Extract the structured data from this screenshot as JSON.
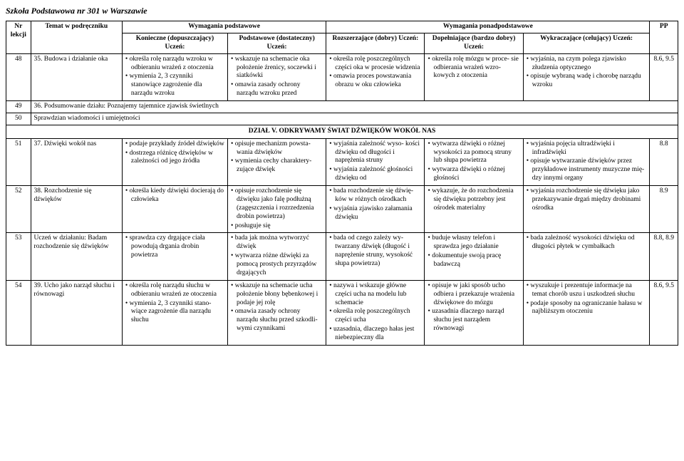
{
  "school": "Szkoła Podstawowa nr 301 w Warszawie",
  "header": {
    "wym_podst": "Wymagania podstawowe",
    "wym_ponad": "Wymagania ponadpodstawowe",
    "nr": "Nr lekcji",
    "temat": "Temat\nw podręczniku",
    "kon": "Konieczne (dopuszczający)\nUczeń:",
    "pod": "Podstawowe (dostateczny)\nUczeń:",
    "roz": "Rozszerzające (dobry)\nUczeń:",
    "dop": "Dopełniające (bardzo dobry)\nUczeń:",
    "wyk": "Wykraczające (celujący)\nUczeń:",
    "pp": "PP"
  },
  "rows": [
    {
      "nr": "48",
      "topic_no": "35.",
      "topic": "Budowa i działanie oka",
      "kon": [
        "określa rolę narządu wzroku w odbieraniu wrażeń z otoczenia",
        "wymienia 2, 3 czynniki stanowiące zagrożenie dla narządu wzroku"
      ],
      "pod": [
        "wskazuje na schemacie oka położenie źrenicy, soczewki i siatkówki",
        "omawia zasady ochrony narządu wzroku przed"
      ],
      "roz": [
        "określa rolę poszczegól­nych części oka w procesie widzenia",
        "omawia proces powstawania obrazu w oku człowieka"
      ],
      "dop": [
        "określa rolę mózgu w proce- sie odbierania wrażeń wzro- kowych z otoczenia"
      ],
      "wyk": [
        "wyjaśnia, na czym polega zja­wisko złudzenia optycznego",
        "opisuje wybraną wadę i cho­robę narządu wzroku"
      ],
      "pp": "8.6,\n9.5"
    },
    {
      "nr": "49",
      "span_text": "36. Podsumowanie działu: Poznajemy tajemnice zjawisk świetlnych"
    },
    {
      "nr": "50",
      "span_text": "Sprawdzian wiadomości i umiejętności"
    }
  ],
  "section_title": "DZIAŁ V. ODKRYWAMY ŚWIAT DŹWIĘKÓW WOKÓŁ NAS",
  "rows2": [
    {
      "nr": "51",
      "topic_no": "37.",
      "topic": "Dźwięki wokół nas",
      "kon": [
        "podaje przykłady źródeł dźwięków",
        "dostrzega różnicę dźwięków w zależności od jego źródła"
      ],
      "pod": [
        "opisuje mechanizm powsta- wania dźwięków",
        "wymienia cechy charaktery- zujące dźwięk"
      ],
      "roz": [
        "wyjaśnia zależność wyso- kości dźwięku od długości i naprężenia struny",
        "wyjaśnia zależność głośności dźwięku od"
      ],
      "dop": [
        "wytwarza dźwięki o różnej wysokości za pomocą struny lub słupa powietrza",
        "wytwarza dźwięki o różnej głośności"
      ],
      "wyk": [
        "wyjaśnia pojęcia ultradźwięki i infradźwięki",
        "opisuje wytwarzanie dźwię­ków przez przykładowe instrumenty muzyczne mię­dzy innymi organy"
      ],
      "pp": "8.8"
    },
    {
      "nr": "52",
      "topic_no": "38.",
      "topic": "Rozchodzenie się dźwięków",
      "kon": [
        "określa kiedy dźwięki dociera­ją do człowieka"
      ],
      "pod": [
        "opisuje rozchodzenie się dźwięku jako falę podłużną (zagęszczenia i rozrzedzenia drobin powietrza)",
        "posługuje się"
      ],
      "roz": [
        "bada rozchodzenie się dźwię- ków w różnych ośrodkach",
        "wyjaśnia zjawisko załamania dźwięku"
      ],
      "dop": [
        "wykazuje, że do rozchodze­nia się dźwięku potrzebny jest ośrodek materialny"
      ],
      "wyk": [
        "wyjaśnia rozchodzenie się dźwięku jako przekazywanie drgań między drobinami ośrodka"
      ],
      "pp": "8.9"
    },
    {
      "nr": "53",
      "topic_no": "",
      "topic": "Uczeń w działaniu: Badam rozchodzenie się dźwięków",
      "kon": [
        "sprawdza czy drgające ciała powodują drgania drobin powietrza"
      ],
      "pod": [
        "bada jak można wytworzyć dźwięk",
        "wytwarza różne dźwięki za pomocą prostych przyrządów drgających"
      ],
      "roz": [
        "bada od czego zależy wy- twarzany dźwięk (długość i naprężenie struny, wysokość słupa powietrza)"
      ],
      "dop": [
        "buduje własny telefon i sprawdza jego działanie",
        "dokumentuje swoją pracę badawczą"
      ],
      "wyk": [
        "bada zależność wysokości dźwięku od długości płytek w cymbałkach"
      ],
      "pp": "8.8,\n8.9"
    },
    {
      "nr": "54",
      "topic_no": "39.",
      "topic": "Ucho jako narząd słuchu i równowagi",
      "kon": [
        "określa rolę narządu słuchu w odbieraniu wrażeń ze otoczenia",
        "wymienia 2, 3 czynniki stano­wiące zagrożenie dla narządu słuchu"
      ],
      "pod": [
        "wskazuje na schemacie ucha położenie błony bębenkowej i podaje jej rolę",
        "omawia zasady ochrony narządu słuchu przed szkodli- wymi czynnikami"
      ],
      "roz": [
        "nazywa i wskazuje główne części ucha na modelu lub schemacie",
        "określa rolę poszczególnych części ucha",
        "uzasadnia, dlaczego hałas jest niebezpieczny dla"
      ],
      "dop": [
        "opisuje w jaki sposób ucho odbiera i przekazuje wrażenia dźwiękowe do mózgu",
        "uzasadnia dlaczego na­rząd słuchu jest narządem równowagi"
      ],
      "wyk": [
        "wyszukuje i prezentuje infor­macje na temat chorób uszu i uszkodzeń słuchu",
        "podaje sposoby na ograni­czanie hałasu w najbliższym otoczeniu"
      ],
      "pp": "8.6,\n9.5"
    }
  ]
}
